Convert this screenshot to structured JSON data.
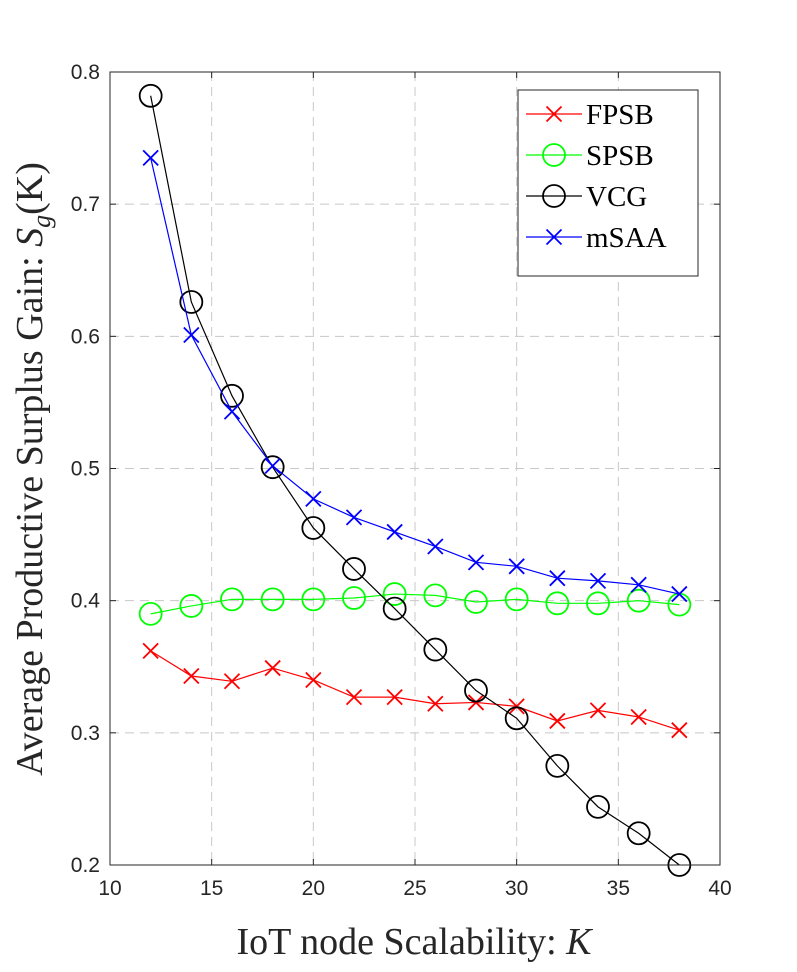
{
  "chart_data": {
    "type": "line",
    "title": "",
    "xlabel_text": "IoT node Scalability: ",
    "xlabel_var": "K",
    "ylabel_text": "Average Productive Surplus Gain: ",
    "ylabel_var": "S",
    "ylabel_sub": "g",
    "ylabel_arg": "(K)",
    "xlim": [
      10,
      40
    ],
    "ylim": [
      0.2,
      0.8
    ],
    "xticks": [
      10,
      15,
      20,
      25,
      30,
      35,
      40
    ],
    "yticks": [
      0.2,
      0.3,
      0.4,
      0.5,
      0.6,
      0.7,
      0.8
    ],
    "ytick_labels": [
      "0.2",
      "0.3",
      "0.4",
      "0.5",
      "0.6",
      "0.7",
      "0.8"
    ],
    "grid": true,
    "legend_position": "top-right",
    "x": [
      12,
      14,
      16,
      18,
      20,
      22,
      24,
      26,
      28,
      30,
      32,
      34,
      36,
      38
    ],
    "series": [
      {
        "name": "FPSB",
        "color": "#ff0000",
        "marker": "x",
        "values": [
          0.362,
          0.343,
          0.339,
          0.349,
          0.34,
          0.327,
          0.327,
          0.322,
          0.323,
          0.32,
          0.309,
          0.317,
          0.312,
          0.302
        ]
      },
      {
        "name": "SPSB",
        "color": "#00ff00",
        "marker": "o",
        "values": [
          0.39,
          0.396,
          0.401,
          0.401,
          0.401,
          0.402,
          0.405,
          0.404,
          0.399,
          0.401,
          0.398,
          0.398,
          0.4,
          0.397
        ]
      },
      {
        "name": "VCG",
        "color": "#000000",
        "marker": "o",
        "values": [
          0.782,
          0.626,
          0.555,
          0.501,
          0.455,
          0.424,
          0.394,
          0.363,
          0.332,
          0.311,
          0.275,
          0.244,
          0.224,
          0.2
        ]
      },
      {
        "name": "mSAA",
        "color": "#0000ff",
        "marker": "x",
        "values": [
          0.735,
          0.601,
          0.543,
          0.502,
          0.477,
          0.463,
          0.452,
          0.441,
          0.429,
          0.426,
          0.417,
          0.415,
          0.412,
          0.405
        ]
      }
    ]
  }
}
